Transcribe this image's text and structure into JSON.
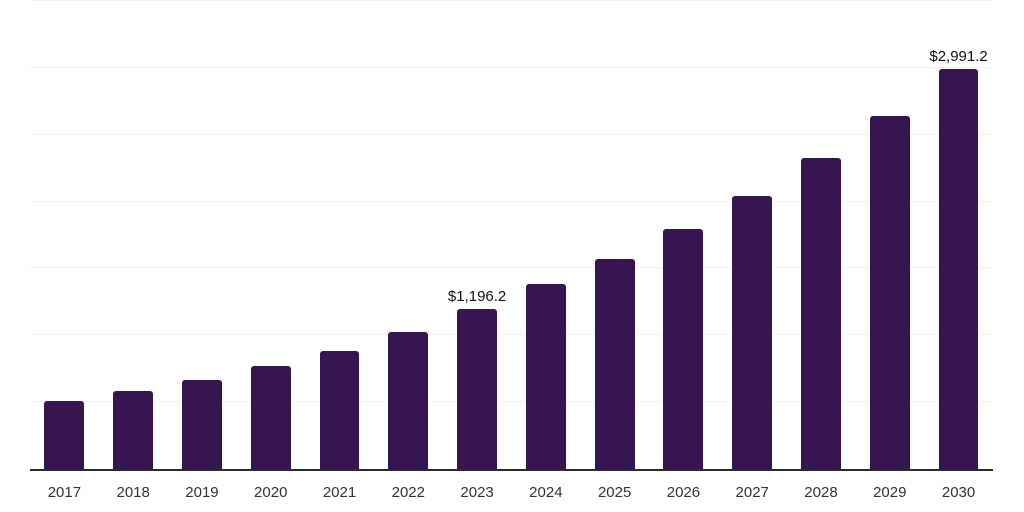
{
  "chart": {
    "background": "#ffffff"
  },
  "chart_data": {
    "type": "bar",
    "title": "",
    "xlabel": "",
    "ylabel": "",
    "categories": [
      "2017",
      "2018",
      "2019",
      "2020",
      "2021",
      "2022",
      "2023",
      "2024",
      "2025",
      "2026",
      "2027",
      "2028",
      "2029",
      "2030"
    ],
    "values": [
      507,
      582,
      664,
      768,
      880,
      1022,
      1196.2,
      1380,
      1574,
      1798,
      2044,
      2327,
      2641,
      2991.2
    ],
    "data_labels": [
      "",
      "",
      "",
      "",
      "",
      "",
      "$1,196.2",
      "",
      "",
      "",
      "",
      "",
      "",
      "$2,991.2"
    ],
    "ylim": [
      0,
      3500
    ],
    "gridline_step": 500,
    "grid": true,
    "legend": false,
    "bar_color": "#371550",
    "gridline_color": "#f2f2f2",
    "axis_line_color": "#2b2b2b",
    "tick_label_color": "#333333",
    "data_label_color": "#111111"
  }
}
